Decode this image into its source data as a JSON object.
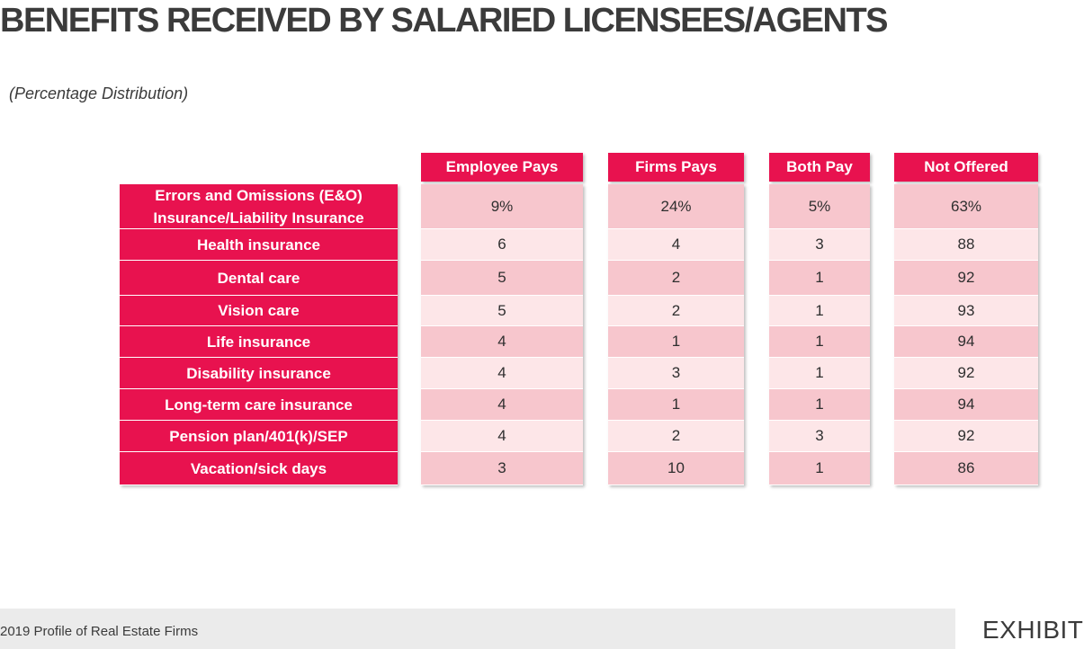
{
  "title": "BENEFITS RECEIVED BY SALARIED LICENSEES/AGENTS",
  "subtitle": "(Percentage Distribution)",
  "table": {
    "columns": [
      "Employee Pays",
      "Firms Pays",
      "Both Pay",
      "Not Offered"
    ],
    "rows": [
      {
        "label": "Errors and Omissions (E&O) Insurance/Liability Insurance",
        "values": [
          "9%",
          "24%",
          "5%",
          "63%"
        ]
      },
      {
        "label": "Health insurance",
        "values": [
          "6",
          "4",
          "3",
          "88"
        ]
      },
      {
        "label": "Dental care",
        "values": [
          "5",
          "2",
          "1",
          "92"
        ]
      },
      {
        "label": "Vision care",
        "values": [
          "5",
          "2",
          "1",
          "93"
        ]
      },
      {
        "label": "Life insurance",
        "values": [
          "4",
          "1",
          "1",
          "94"
        ]
      },
      {
        "label": "Disability insurance",
        "values": [
          "4",
          "3",
          "1",
          "92"
        ]
      },
      {
        "label": "Long-term care insurance",
        "values": [
          "4",
          "1",
          "1",
          "94"
        ]
      },
      {
        "label": "Pension plan/401(k)/SEP",
        "values": [
          "4",
          "2",
          "3",
          "92"
        ]
      },
      {
        "label": "Vacation/sick days",
        "values": [
          "3",
          "10",
          "1",
          "86"
        ]
      }
    ]
  },
  "footer": {
    "source": "2019 Profile of Real Estate Firms",
    "exhibit": "EXHIBIT"
  },
  "colors": {
    "accent": "#e8124f",
    "row_dark": "#f7c6cd",
    "row_light": "#fde6e8",
    "text": "#3b3b3b"
  }
}
